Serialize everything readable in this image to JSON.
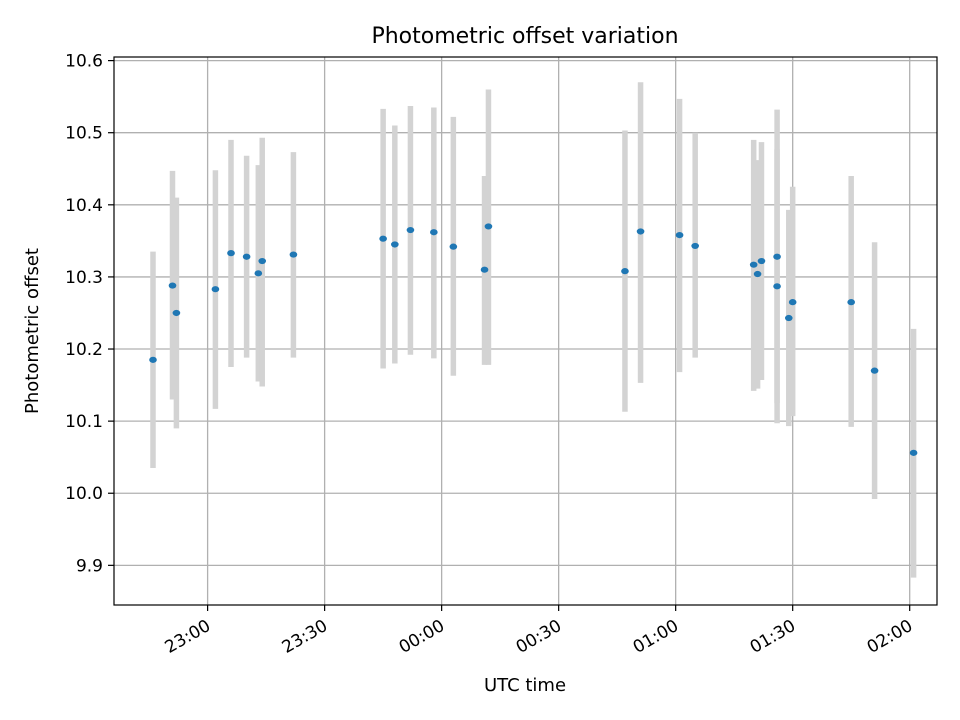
{
  "chart_data": {
    "type": "scatter",
    "title": "Photometric offset variation",
    "xlabel": "UTC time",
    "ylabel": "Photometric offset",
    "x_unit": "UTC time (HH:MM)",
    "xlim": [
      "22:36",
      "02:07"
    ],
    "ylim": [
      9.845,
      10.605
    ],
    "x_ticks": [
      "23:00",
      "23:30",
      "00:00",
      "00:30",
      "01:00",
      "01:30",
      "02:00"
    ],
    "y_ticks": [
      "9.9",
      "10.0",
      "10.1",
      "10.2",
      "10.3",
      "10.4",
      "10.5",
      "10.6"
    ],
    "grid": true,
    "series": [
      {
        "marker_color": "#1f77b4",
        "errorbar_color": "#d3d3d3",
        "points": [
          {
            "x": "22:46",
            "y": 10.185,
            "low": 10.035,
            "high": 10.335
          },
          {
            "x": "22:51",
            "y": 10.288,
            "low": 10.13,
            "high": 10.447
          },
          {
            "x": "22:52",
            "y": 10.25,
            "low": 10.09,
            "high": 10.41
          },
          {
            "x": "23:02",
            "y": 10.283,
            "low": 10.117,
            "high": 10.448
          },
          {
            "x": "23:06",
            "y": 10.333,
            "low": 10.175,
            "high": 10.49
          },
          {
            "x": "23:10",
            "y": 10.328,
            "low": 10.188,
            "high": 10.468
          },
          {
            "x": "23:13",
            "y": 10.305,
            "low": 10.155,
            "high": 10.455
          },
          {
            "x": "23:14",
            "y": 10.322,
            "low": 10.148,
            "high": 10.493
          },
          {
            "x": "23:22",
            "y": 10.331,
            "low": 10.188,
            "high": 10.473
          },
          {
            "x": "23:45",
            "y": 10.353,
            "low": 10.173,
            "high": 10.533
          },
          {
            "x": "23:48",
            "y": 10.345,
            "low": 10.18,
            "high": 10.51
          },
          {
            "x": "23:52",
            "y": 10.365,
            "low": 10.192,
            "high": 10.537
          },
          {
            "x": "23:58",
            "y": 10.362,
            "low": 10.187,
            "high": 10.535
          },
          {
            "x": "00:03",
            "y": 10.342,
            "low": 10.163,
            "high": 10.522
          },
          {
            "x": "00:11",
            "y": 10.31,
            "low": 10.178,
            "high": 10.44
          },
          {
            "x": "00:12",
            "y": 10.37,
            "low": 10.178,
            "high": 10.56
          },
          {
            "x": "00:47",
            "y": 10.308,
            "low": 10.113,
            "high": 10.503
          },
          {
            "x": "00:51",
            "y": 10.363,
            "low": 10.153,
            "high": 10.57
          },
          {
            "x": "01:01",
            "y": 10.358,
            "low": 10.168,
            "high": 10.547
          },
          {
            "x": "01:05",
            "y": 10.343,
            "low": 10.188,
            "high": 10.5
          },
          {
            "x": "01:20",
            "y": 10.317,
            "low": 10.142,
            "high": 10.49
          },
          {
            "x": "01:21",
            "y": 10.304,
            "low": 10.145,
            "high": 10.462
          },
          {
            "x": "01:22",
            "y": 10.322,
            "low": 10.157,
            "high": 10.487
          },
          {
            "x": "01:26",
            "y": 10.328,
            "low": 10.125,
            "high": 10.532
          },
          {
            "x": "01:26",
            "y": 10.287,
            "low": 10.097,
            "high": 10.477
          },
          {
            "x": "01:29",
            "y": 10.243,
            "low": 10.093,
            "high": 10.393
          },
          {
            "x": "01:30",
            "y": 10.265,
            "low": 10.107,
            "high": 10.425
          },
          {
            "x": "01:45",
            "y": 10.265,
            "low": 10.092,
            "high": 10.44
          },
          {
            "x": "01:51",
            "y": 10.17,
            "low": 9.992,
            "high": 10.348
          },
          {
            "x": "02:01",
            "y": 10.056,
            "low": 9.883,
            "high": 10.228
          }
        ]
      }
    ]
  }
}
